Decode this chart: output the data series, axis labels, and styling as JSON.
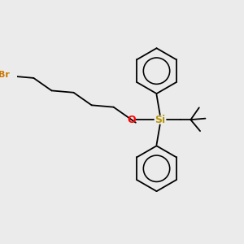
{
  "background_color": "#ebebeb",
  "bond_color": "#000000",
  "br_color": "#cc7700",
  "o_color": "#ff0000",
  "si_color": "#b8960c",
  "ring_color": "#000000",
  "label_br": "Br",
  "label_o": "O",
  "label_si": "Si",
  "figsize": [
    3.0,
    3.0
  ],
  "dpi": 100
}
